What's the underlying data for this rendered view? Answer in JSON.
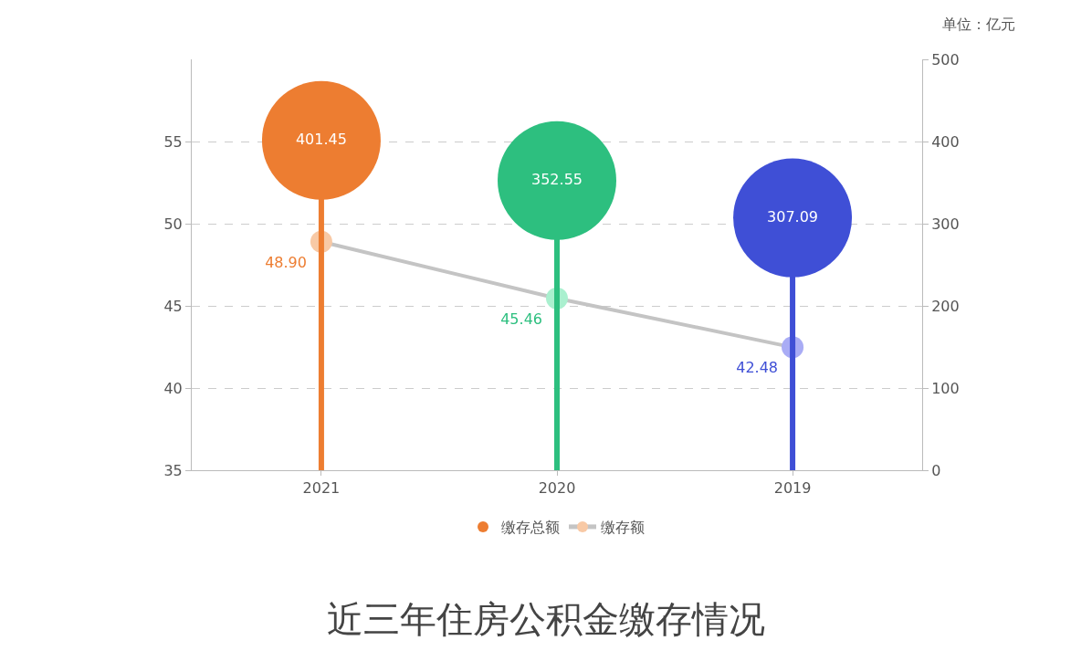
{
  "chart_data": {
    "type": "lollipop",
    "title": "近三年住房公积金缴存情况",
    "annotations": [
      "单位：亿元"
    ],
    "categories": [
      "2021",
      "2020",
      "2019"
    ],
    "series": [
      {
        "name": "缴存总额",
        "axis": "y2",
        "colors": [
          "#ed7d31",
          "#2dbf7f",
          "#3f4fd6"
        ],
        "values": [
          401.45,
          352.55,
          307.09
        ],
        "value_labels": [
          "401.45",
          "352.55",
          "307.09"
        ]
      },
      {
        "name": "缴存额",
        "type": "line",
        "color": "#c4c4c4",
        "colors": [
          "#f8c9a5",
          "#aaf0cf",
          "#a9acf5"
        ],
        "values": [
          48.9,
          45.46,
          42.48
        ],
        "value_labels": [
          "48.90",
          "45.46",
          "42.48"
        ]
      }
    ],
    "ylim": [
      35,
      60
    ],
    "yticks": [
      35,
      40,
      45,
      50,
      55
    ],
    "y2lim": [
      0,
      500
    ],
    "y2ticks": [
      0,
      100,
      200,
      300,
      400,
      500
    ],
    "grid": "y",
    "legend": "bottom",
    "marker": "circle",
    "line_style": "solid"
  }
}
